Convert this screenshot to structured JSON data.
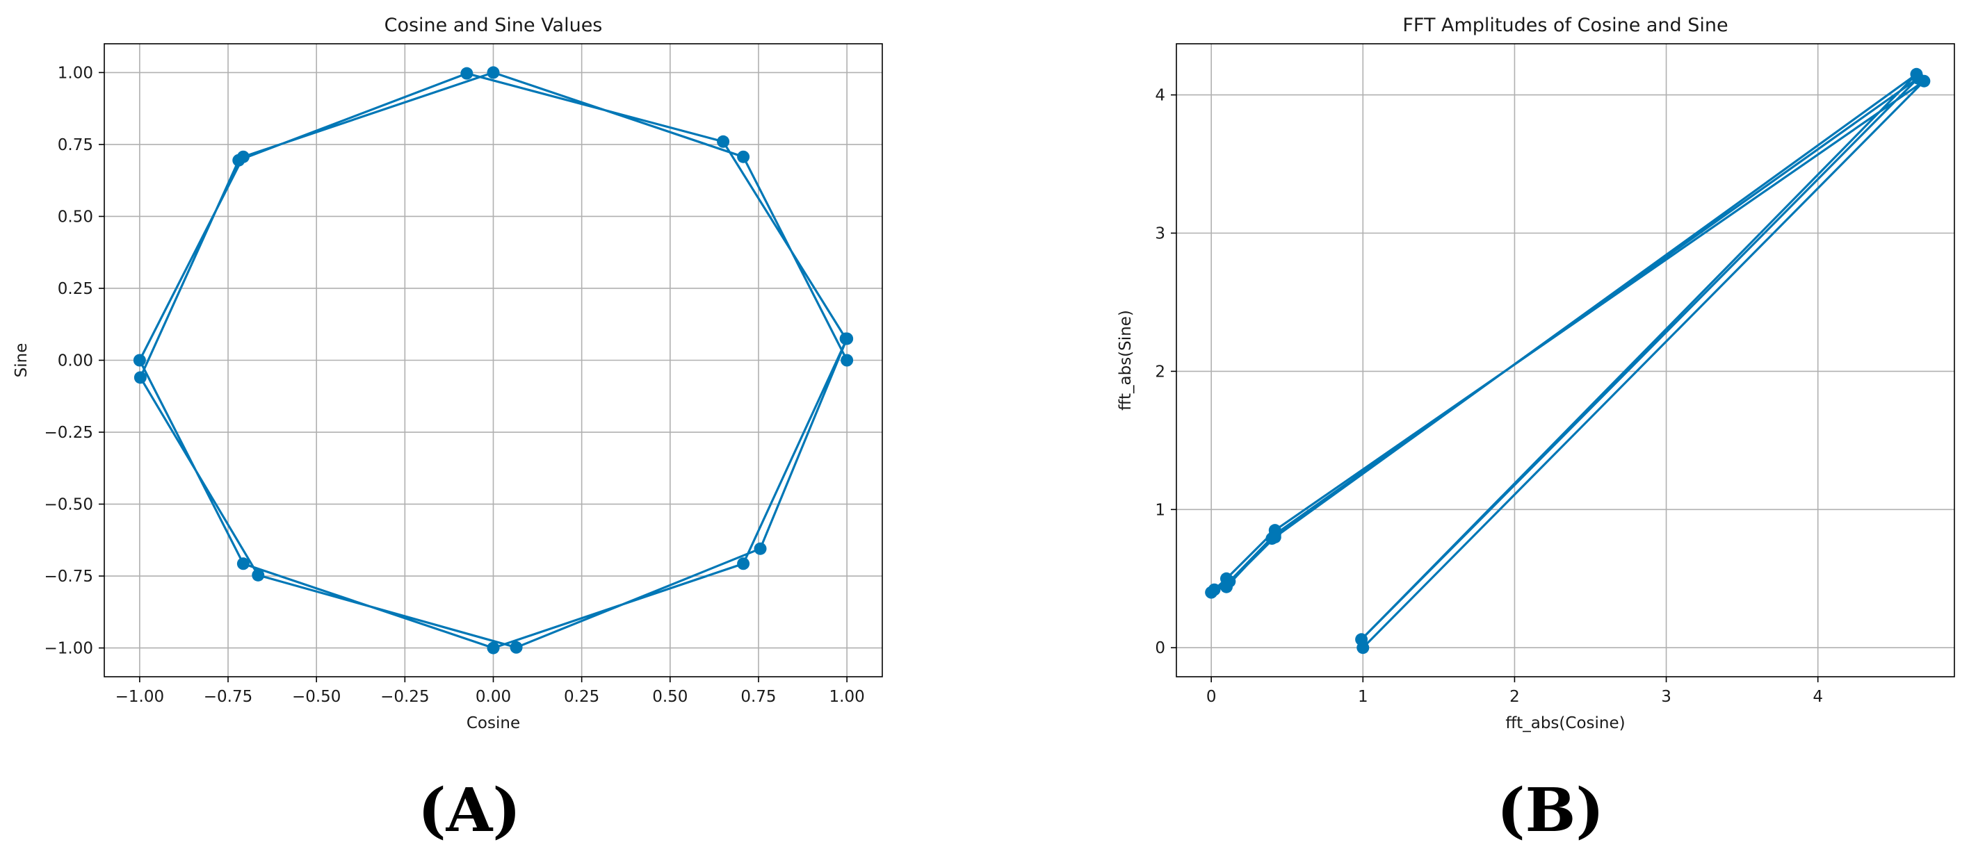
{
  "figure": {
    "panel_labels": [
      "(A)",
      "(B)"
    ]
  },
  "colors": {
    "series": "#0077b6",
    "grid": "#b0b0b0",
    "text": "#1a1a1a"
  },
  "chart_data": [
    {
      "type": "line",
      "markers": true,
      "title": "Cosine and Sine Values",
      "xlabel": "Cosine",
      "ylabel": "Sine",
      "xlim": [
        -1.1,
        1.1
      ],
      "ylim": [
        -1.1,
        1.1
      ],
      "xticks": [
        -1.0,
        -0.75,
        -0.5,
        -0.25,
        0.0,
        0.25,
        0.5,
        0.75,
        1.0
      ],
      "yticks": [
        -1.0,
        -0.75,
        -0.5,
        -0.25,
        0.0,
        0.25,
        0.5,
        0.75,
        1.0
      ],
      "xtick_labels": [
        "−1.00",
        "−0.75",
        "−0.50",
        "−0.25",
        "0.00",
        "0.25",
        "0.50",
        "0.75",
        "1.00"
      ],
      "ytick_labels": [
        "−1.00",
        "−0.75",
        "−0.50",
        "−0.25",
        "0.00",
        "0.25",
        "0.50",
        "0.75",
        "1.00"
      ],
      "grid": true,
      "series": [
        {
          "x": [
            1.0,
            0.707,
            0.0,
            -0.707,
            -1.0,
            -0.707,
            0.0,
            0.707,
            1.0,
            0.755,
            0.065,
            -0.665,
            -0.998,
            -0.72,
            -0.075,
            0.65,
            0.997
          ],
          "y": [
            0.0,
            0.707,
            1.0,
            0.707,
            0.0,
            -0.707,
            -1.0,
            -0.707,
            0.075,
            -0.655,
            -0.998,
            -0.747,
            -0.06,
            0.695,
            0.997,
            0.76,
            0.075
          ]
        }
      ]
    },
    {
      "type": "line",
      "markers": true,
      "title": "FFT Amplitudes of Cosine and Sine",
      "xlabel": "fft_abs(Cosine)",
      "ylabel": "fft_abs(Sine)",
      "xlim": [
        -0.23,
        4.9
      ],
      "ylim": [
        -0.21,
        4.37
      ],
      "xticks": [
        0,
        1,
        2,
        3,
        4
      ],
      "yticks": [
        0,
        1,
        2,
        3,
        4
      ],
      "xtick_labels": [
        "0",
        "1",
        "2",
        "3",
        "4"
      ],
      "ytick_labels": [
        "0",
        "1",
        "2",
        "3",
        "4"
      ],
      "grid": true,
      "series": [
        {
          "x": [
            1.0,
            4.7,
            0.42,
            0.1,
            0.0,
            0.1,
            0.42,
            4.65,
            0.99,
            4.66,
            0.42,
            0.12,
            0.02,
            0.1,
            0.4
          ],
          "y": [
            0.0,
            4.1,
            0.85,
            0.5,
            0.4,
            0.45,
            0.8,
            4.15,
            0.06,
            4.12,
            0.82,
            0.48,
            0.42,
            0.44,
            0.79
          ]
        }
      ]
    }
  ]
}
